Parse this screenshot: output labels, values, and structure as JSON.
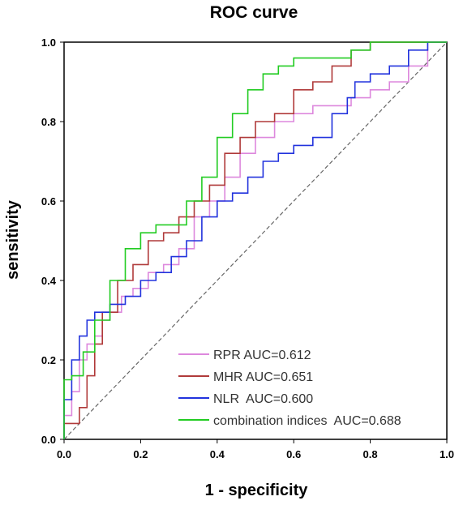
{
  "chart_data": {
    "type": "line",
    "title": "ROC curve",
    "xlabel": "1 - specificity",
    "ylabel": "sensitivity",
    "xlim": [
      0,
      1
    ],
    "ylim": [
      0,
      1
    ],
    "xticks": [
      "0.0",
      "0.2",
      "0.4",
      "0.6",
      "0.8",
      "1.0"
    ],
    "yticks": [
      "0.0",
      "0.2",
      "0.4",
      "0.6",
      "0.8",
      "1.0"
    ],
    "grid": false,
    "legend_position": "bottom-right",
    "reference_line": {
      "style": "dashed",
      "color": "#666666",
      "x": [
        0,
        1
      ],
      "y": [
        0,
        1
      ]
    },
    "series": [
      {
        "name": "RPR AUC=0.612",
        "color": "#dd88dd",
        "x": [
          0,
          0.02,
          0.04,
          0.06,
          0.08,
          0.1,
          0.12,
          0.15,
          0.18,
          0.22,
          0.26,
          0.3,
          0.34,
          0.38,
          0.42,
          0.46,
          0.5,
          0.55,
          0.6,
          0.65,
          0.7,
          0.75,
          0.8,
          0.85,
          0.9,
          0.95,
          1.0
        ],
        "y": [
          0,
          0.06,
          0.12,
          0.2,
          0.24,
          0.26,
          0.3,
          0.32,
          0.36,
          0.38,
          0.42,
          0.44,
          0.48,
          0.56,
          0.6,
          0.66,
          0.72,
          0.76,
          0.8,
          0.82,
          0.84,
          0.84,
          0.86,
          0.88,
          0.9,
          0.94,
          1.0
        ]
      },
      {
        "name": "MHR AUC=0.651",
        "color": "#b03a3a",
        "x": [
          0,
          0.04,
          0.06,
          0.08,
          0.1,
          0.14,
          0.18,
          0.22,
          0.26,
          0.3,
          0.34,
          0.38,
          0.42,
          0.46,
          0.5,
          0.55,
          0.6,
          0.65,
          0.7,
          0.75,
          0.8,
          0.85,
          0.9,
          1.0
        ],
        "y": [
          0,
          0.04,
          0.08,
          0.16,
          0.24,
          0.32,
          0.4,
          0.44,
          0.5,
          0.52,
          0.56,
          0.6,
          0.64,
          0.72,
          0.76,
          0.8,
          0.82,
          0.88,
          0.9,
          0.94,
          0.98,
          1.0,
          1.0,
          1.0
        ]
      },
      {
        "name": "NLR  AUC=0.600",
        "color": "#2233dd",
        "x": [
          0,
          0.02,
          0.04,
          0.06,
          0.08,
          0.1,
          0.12,
          0.14,
          0.16,
          0.2,
          0.24,
          0.28,
          0.32,
          0.36,
          0.4,
          0.44,
          0.48,
          0.52,
          0.56,
          0.6,
          0.65,
          0.7,
          0.74,
          0.76,
          0.8,
          0.85,
          0.9,
          0.95,
          1.0
        ],
        "y": [
          0,
          0.1,
          0.2,
          0.26,
          0.3,
          0.32,
          0.32,
          0.34,
          0.34,
          0.36,
          0.4,
          0.42,
          0.46,
          0.5,
          0.56,
          0.6,
          0.62,
          0.66,
          0.7,
          0.72,
          0.74,
          0.76,
          0.82,
          0.86,
          0.9,
          0.92,
          0.94,
          0.98,
          1.0
        ]
      },
      {
        "name": "combination indices  AUC=0.688",
        "color": "#22cc22",
        "x": [
          0,
          0.01,
          0.02,
          0.05,
          0.08,
          0.12,
          0.16,
          0.2,
          0.24,
          0.28,
          0.32,
          0.36,
          0.4,
          0.44,
          0.48,
          0.52,
          0.56,
          0.6,
          0.65,
          0.7,
          0.75,
          0.8,
          0.85,
          0.9,
          1.0
        ],
        "y": [
          0,
          0.15,
          0.15,
          0.16,
          0.22,
          0.3,
          0.4,
          0.48,
          0.52,
          0.54,
          0.54,
          0.6,
          0.66,
          0.76,
          0.82,
          0.88,
          0.92,
          0.94,
          0.96,
          0.96,
          0.96,
          0.98,
          1.0,
          1.0,
          1.0
        ]
      }
    ]
  }
}
